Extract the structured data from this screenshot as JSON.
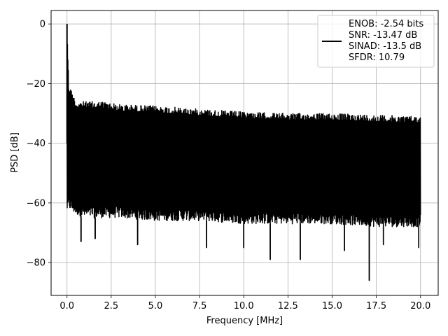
{
  "chart_data": {
    "type": "line",
    "title": "",
    "xlabel": "Frequency [MHz]",
    "ylabel": "PSD [dB]",
    "xlim": [
      -0.9,
      21.0
    ],
    "ylim": [
      -91,
      4.5
    ],
    "x_ticks": [
      0.0,
      2.5,
      5.0,
      7.5,
      10.0,
      12.5,
      15.0,
      17.5,
      20.0
    ],
    "x_tick_labels": [
      "0.0",
      "2.5",
      "5.0",
      "7.5",
      "10.0",
      "12.5",
      "15.0",
      "17.5",
      "20.0"
    ],
    "y_ticks": [
      0,
      -20,
      -40,
      -60,
      -80
    ],
    "y_tick_labels": [
      "0",
      "−20",
      "−40",
      "−60",
      "−80"
    ],
    "grid": true,
    "legend_position": "top-right",
    "series": [
      {
        "color": "#000000",
        "x_range": [
          0.0,
          20.0
        ],
        "peak": {
          "x": 0.0,
          "y": 0.0
        },
        "upper_envelope": {
          "x": [
            0.0,
            0.1,
            0.5,
            1.0,
            2.0,
            3.0,
            5.0,
            7.5,
            10.0,
            12.5,
            15.0,
            17.5,
            20.0
          ],
          "y": [
            0.0,
            -20,
            -26,
            -26,
            -26,
            -27,
            -27.5,
            -28.5,
            -29.5,
            -30,
            -30,
            -30.5,
            -31
          ]
        },
        "lower_envelope": {
          "x": [
            0.0,
            0.1,
            0.5,
            1.0,
            2.0,
            3.0,
            5.0,
            7.5,
            10.0,
            12.5,
            15.0,
            17.5,
            20.0
          ],
          "y": [
            -63,
            -62,
            -64,
            -65,
            -65,
            -65,
            -66,
            -66,
            -67,
            -67,
            -67,
            -68,
            -68
          ]
        },
        "deep_dips": [
          {
            "x": 0.8,
            "y": -73
          },
          {
            "x": 1.6,
            "y": -72
          },
          {
            "x": 4.0,
            "y": -74
          },
          {
            "x": 7.9,
            "y": -75
          },
          {
            "x": 10.0,
            "y": -75
          },
          {
            "x": 11.5,
            "y": -79
          },
          {
            "x": 13.2,
            "y": -79
          },
          {
            "x": 15.7,
            "y": -76
          },
          {
            "x": 17.1,
            "y": -86
          },
          {
            "x": 17.9,
            "y": -74
          },
          {
            "x": 19.9,
            "y": -75
          }
        ]
      }
    ],
    "legend": {
      "entries": [
        "ENOB: -2.54 bits",
        "SNR: -13.47 dB",
        "SINAD: -13.5 dB",
        "SFDR: 10.79"
      ]
    }
  }
}
